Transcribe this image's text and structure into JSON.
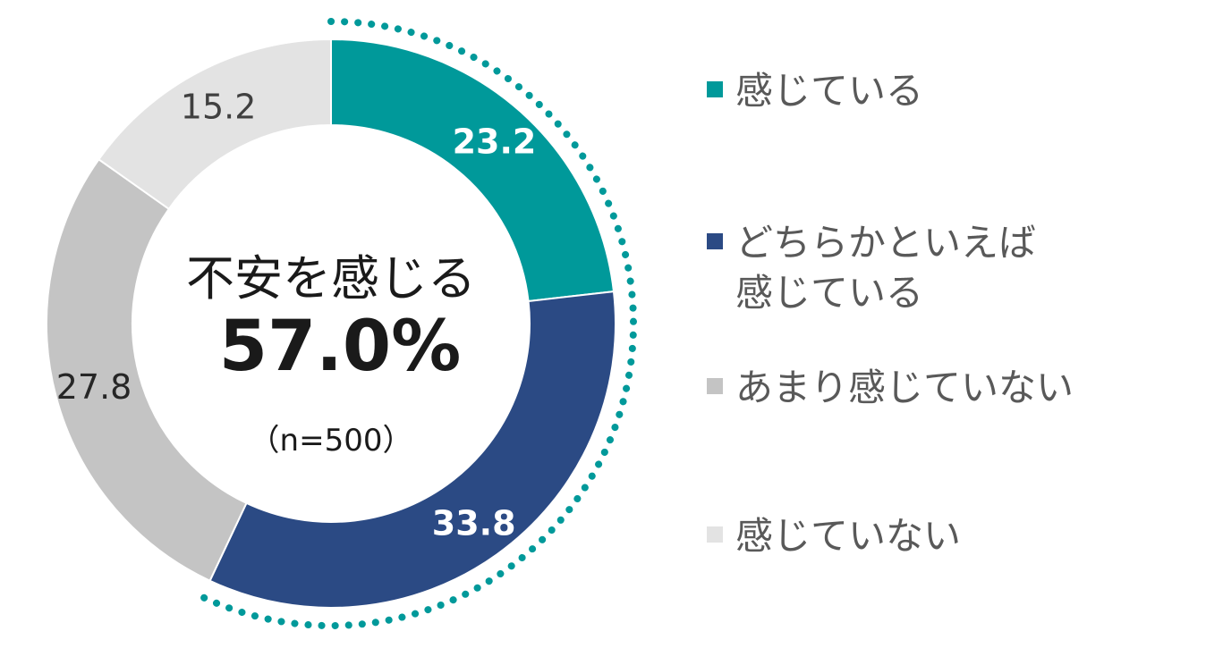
{
  "chart_data": {
    "type": "pie",
    "categories": [
      "感じている",
      "どちらかといえば\n感じている",
      "あまり感じていない",
      "感じていない"
    ],
    "values": [
      23.2,
      33.8,
      27.8,
      15.2
    ],
    "value_labels": [
      "23.2",
      "33.8",
      "27.8",
      "15.2"
    ],
    "colors": [
      "#00999a",
      "#2b4a84",
      "#c4c4c4",
      "#e3e3e3"
    ],
    "value_label_colors": [
      "#ffffff",
      "#ffffff",
      "#262626",
      "#404040"
    ],
    "highlight_color": "#00999a",
    "legend_position": "right",
    "center": {
      "title": "不安を感じる",
      "value": "57.0%",
      "note": "（n=500）"
    }
  }
}
